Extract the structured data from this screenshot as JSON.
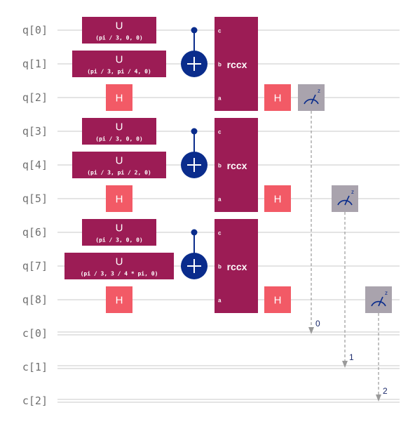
{
  "qubits": [
    "q[0]",
    "q[1]",
    "q[2]",
    "q[3]",
    "q[4]",
    "q[5]",
    "q[6]",
    "q[7]",
    "q[8]"
  ],
  "clbits": [
    "c[0]",
    "c[1]",
    "c[2]"
  ],
  "colors": {
    "u_gate": "#9c1c55",
    "h_gate": "#f25a66",
    "rccx_gate": "#9c1c55",
    "control": "#0a2c8c",
    "target": "#0a2c8c",
    "measure": "#a9a3ad",
    "wire": "#c8c8c8",
    "label": "#6f6f6f",
    "arrow": "#9a9a9a"
  },
  "blocks": [
    {
      "u_gates": [
        {
          "qubit": 0,
          "label": "U",
          "params": "(pi / 3, 0, 0)"
        },
        {
          "qubit": 1,
          "label": "U",
          "params": "(pi / 3, pi / 4, 0)"
        }
      ],
      "h_before": {
        "qubit": 2,
        "label": "H"
      },
      "cx": {
        "control": 0,
        "target": 1
      },
      "rccx": {
        "label": "rccx",
        "ports": [
          "c",
          "b",
          "a"
        ]
      },
      "h_after": {
        "qubit": 2,
        "label": "H"
      },
      "measure": {
        "qubit": 2,
        "clbit": 0,
        "index": "0"
      }
    },
    {
      "u_gates": [
        {
          "qubit": 3,
          "label": "U",
          "params": "(pi / 3, 0, 0)"
        },
        {
          "qubit": 4,
          "label": "U",
          "params": "(pi / 3, pi / 2, 0)"
        }
      ],
      "h_before": {
        "qubit": 5,
        "label": "H"
      },
      "cx": {
        "control": 3,
        "target": 4
      },
      "rccx": {
        "label": "rccx",
        "ports": [
          "c",
          "b",
          "a"
        ]
      },
      "h_after": {
        "qubit": 5,
        "label": "H"
      },
      "measure": {
        "qubit": 5,
        "clbit": 1,
        "index": "1"
      }
    },
    {
      "u_gates": [
        {
          "qubit": 6,
          "label": "U",
          "params": "(pi / 3, 0, 0)"
        },
        {
          "qubit": 7,
          "label": "U",
          "params": "(pi / 3, 3 / 4 * pi, 0)"
        }
      ],
      "h_before": {
        "qubit": 8,
        "label": "H"
      },
      "cx": {
        "control": 6,
        "target": 7
      },
      "rccx": {
        "label": "rccx",
        "ports": [
          "c",
          "b",
          "a"
        ]
      },
      "h_after": {
        "qubit": 8,
        "label": "H"
      },
      "measure": {
        "qubit": 8,
        "clbit": 2,
        "index": "2"
      }
    }
  ]
}
